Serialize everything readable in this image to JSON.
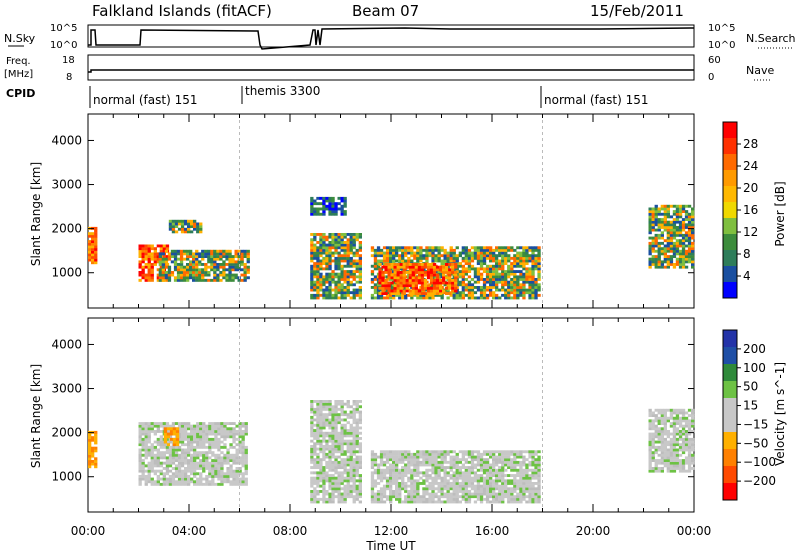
{
  "header": {
    "title": "Falkland Islands (fitACF)",
    "beam": "Beam 07",
    "date": "15/Feb/2011"
  },
  "top_panels": {
    "nsky": {
      "label": "N.Sky",
      "ticks": [
        "10^5",
        "10^0"
      ]
    },
    "nsearch": {
      "label": "N.Search",
      "ticks": [
        "10^5",
        "10^0"
      ]
    },
    "freq": {
      "label": "Freq.",
      "unit": "[MHz]",
      "ticks": [
        "18",
        "8"
      ]
    },
    "nave": {
      "label": "Nave",
      "ticks": [
        "60",
        "0"
      ]
    },
    "cpid": {
      "label": "CPID",
      "segments": [
        {
          "name": "normal (fast) 151",
          "start": 0,
          "end": 6.0
        },
        {
          "name": "themis 3300",
          "start": 6.0,
          "end": 18.0
        },
        {
          "name": "normal (fast) 151",
          "start": 18.0,
          "end": 24
        }
      ]
    }
  },
  "chart_data": [
    {
      "type": "heatmap",
      "name": "power",
      "ylabel": "Slant Range [km]",
      "ylim": [
        200,
        4600
      ],
      "xlim": [
        0,
        24
      ],
      "yticks": [
        1000,
        2000,
        3000,
        4000
      ],
      "colorbar": {
        "label": "Power [dB]",
        "range": [
          0,
          32
        ],
        "ticks": [
          "28",
          "24",
          "20",
          "16",
          "12",
          "8",
          "4"
        ],
        "colors": [
          "#ff0000",
          "#ff3000",
          "#ff6a00",
          "#ff9a00",
          "#ffb800",
          "#f0d800",
          "#7fbf3f",
          "#3c8c3c",
          "#2e7d5a",
          "#1a4fa0",
          "#0000ff"
        ]
      },
      "echo_regions": [
        {
          "t0": 0.0,
          "t1": 0.3,
          "r0": 1200,
          "r1": 2000,
          "level": "high"
        },
        {
          "t0": 2.0,
          "t1": 3.2,
          "r0": 800,
          "r1": 1600,
          "level": "high"
        },
        {
          "t0": 2.8,
          "t1": 6.3,
          "r0": 800,
          "r1": 1500,
          "level": "mid"
        },
        {
          "t0": 3.2,
          "t1": 4.5,
          "r0": 1900,
          "r1": 2200,
          "level": "mid"
        },
        {
          "t0": 8.8,
          "t1": 10.8,
          "r0": 400,
          "r1": 1900,
          "level": "mid"
        },
        {
          "t0": 8.8,
          "t1": 10.2,
          "r0": 2300,
          "r1": 2700,
          "level": "low"
        },
        {
          "t0": 11.2,
          "t1": 17.9,
          "r0": 400,
          "r1": 1600,
          "level": "mid"
        },
        {
          "t0": 11.5,
          "t1": 14.5,
          "r0": 500,
          "r1": 1200,
          "level": "high"
        },
        {
          "t0": 22.2,
          "t1": 24.0,
          "r0": 1100,
          "r1": 2500,
          "level": "mid"
        }
      ]
    },
    {
      "type": "heatmap",
      "name": "velocity",
      "ylabel": "Slant Range [km]",
      "xlabel": "Time UT",
      "ylim": [
        200,
        4600
      ],
      "xlim": [
        0,
        24
      ],
      "yticks": [
        1000,
        2000,
        3000,
        4000
      ],
      "xticks": [
        "00:00",
        "04:00",
        "08:00",
        "12:00",
        "16:00",
        "20:00",
        "00:00"
      ],
      "colorbar": {
        "label": "Velocity [m s^-1]",
        "ticks": [
          "200",
          "100",
          "50",
          "15",
          "−15",
          "−50",
          "−100",
          "−200"
        ],
        "colors": [
          "#2333a8",
          "#1f4fa6",
          "#2f8a3a",
          "#6dc244",
          "#c8c8c8",
          "#c8c8c8",
          "#ffb000",
          "#ff8000",
          "#ff4a00",
          "#ff0000"
        ]
      },
      "echo_regions": [
        {
          "t0": 0.0,
          "t1": 0.3,
          "r0": 1200,
          "r1": 2000,
          "level": "orange"
        },
        {
          "t0": 2.0,
          "t1": 6.3,
          "r0": 800,
          "r1": 2200,
          "level": "grey"
        },
        {
          "t0": 3.0,
          "t1": 3.5,
          "r0": 1700,
          "r1": 2100,
          "level": "orange"
        },
        {
          "t0": 8.8,
          "t1": 10.8,
          "r0": 400,
          "r1": 2700,
          "level": "grey"
        },
        {
          "t0": 11.2,
          "t1": 17.9,
          "r0": 400,
          "r1": 1600,
          "level": "grey"
        },
        {
          "t0": 22.2,
          "t1": 24.0,
          "r0": 1100,
          "r1": 2500,
          "level": "grey"
        }
      ]
    }
  ],
  "footer": {
    "xlabel": "Time UT"
  }
}
